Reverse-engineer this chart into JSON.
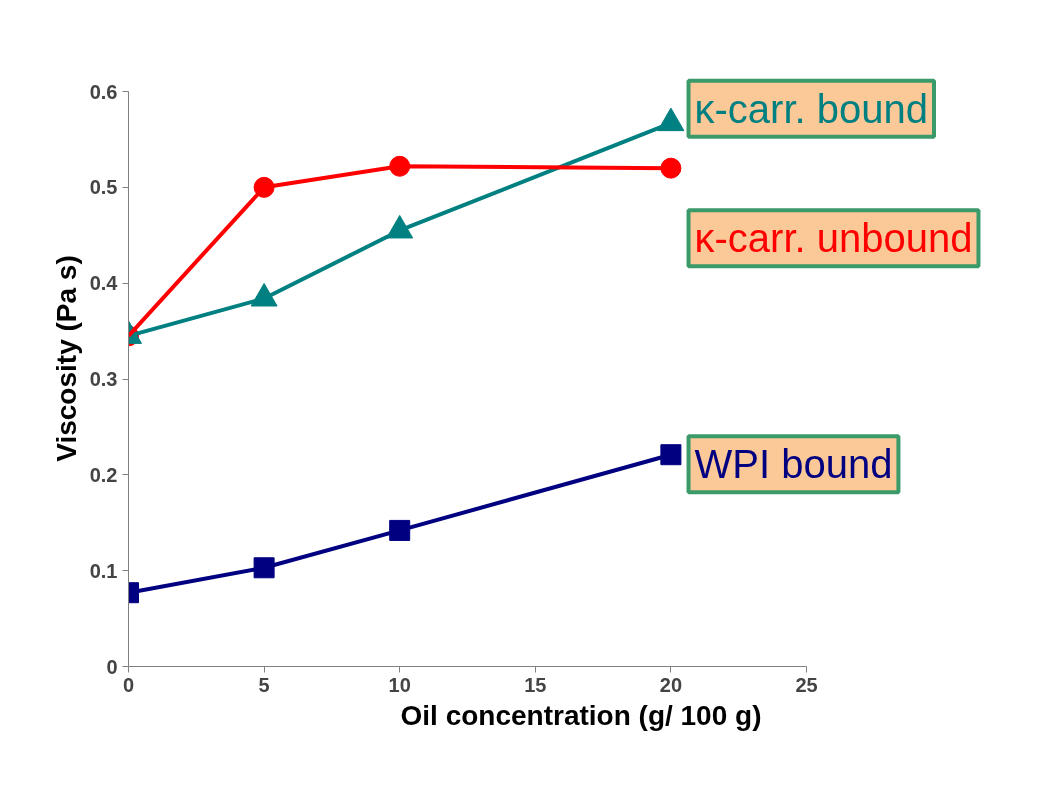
{
  "chart_data": {
    "type": "line",
    "xlabel": "Oil concentration (g/ 100 g)",
    "ylabel": "Viscosity (Pa s)",
    "x": [
      0,
      5,
      10,
      20
    ],
    "series": [
      {
        "name": "κ-carr. bound",
        "color": "#008080",
        "marker": "triangle",
        "values": [
          0.345,
          0.384,
          0.455,
          0.567
        ]
      },
      {
        "name": "κ-carr. unbound",
        "color": "#ff0000",
        "marker": "circle",
        "values": [
          0.345,
          0.5,
          0.522,
          0.52
        ]
      },
      {
        "name": "WPI bound",
        "color": "#000080",
        "marker": "square",
        "values": [
          0.077,
          0.103,
          0.142,
          0.221
        ]
      }
    ],
    "xlim": [
      0,
      25
    ],
    "ylim": [
      0,
      0.6
    ],
    "xticks": [
      0,
      5,
      10,
      15,
      20,
      25
    ],
    "yticks": [
      0,
      0.1,
      0.2,
      0.3,
      0.4,
      0.5,
      0.6
    ],
    "grid": false
  }
}
